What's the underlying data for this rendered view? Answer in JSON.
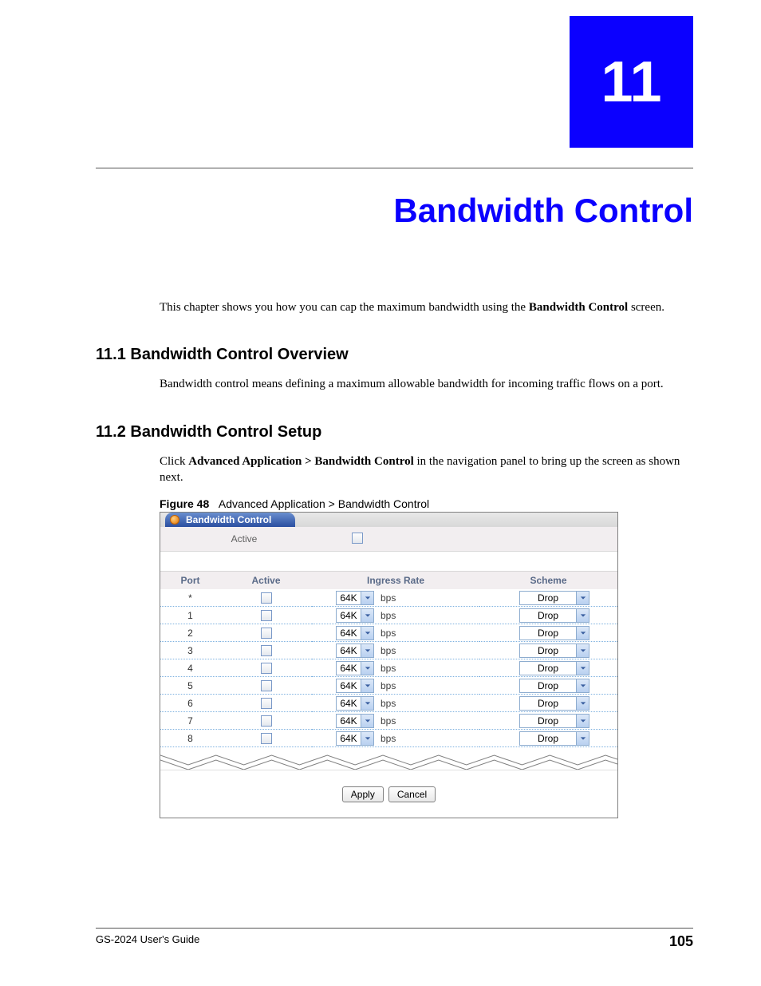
{
  "chapter": {
    "number": "11",
    "title": "Bandwidth Control"
  },
  "intro": {
    "prefix": "This chapter shows you how you can cap the maximum bandwidth using the ",
    "bold": "Bandwidth Control",
    "suffix": " screen."
  },
  "s1": {
    "heading": "11.1  Bandwidth Control Overview",
    "body": "Bandwidth control means defining a maximum allowable bandwidth for incoming traffic flows on a port."
  },
  "s2": {
    "heading": "11.2  Bandwidth Control Setup",
    "body_prefix": "Click ",
    "body_bold": "Advanced Application > Bandwidth Control",
    "body_suffix": " in the navigation panel to bring up the screen as shown next."
  },
  "figure": {
    "label": "Figure 48",
    "caption": "Advanced Application > Bandwidth Control"
  },
  "screenshot": {
    "tab_title": "Bandwidth Control",
    "active_label": "Active",
    "columns": {
      "port": "Port",
      "active": "Active",
      "rate": "Ingress Rate",
      "scheme": "Scheme"
    },
    "rate_unit": "bps",
    "rows": [
      {
        "port": "*",
        "rate": "64K",
        "scheme": "Drop"
      },
      {
        "port": "1",
        "rate": "64K",
        "scheme": "Drop"
      },
      {
        "port": "2",
        "rate": "64K",
        "scheme": "Drop"
      },
      {
        "port": "3",
        "rate": "64K",
        "scheme": "Drop"
      },
      {
        "port": "4",
        "rate": "64K",
        "scheme": "Drop"
      },
      {
        "port": "5",
        "rate": "64K",
        "scheme": "Drop"
      },
      {
        "port": "6",
        "rate": "64K",
        "scheme": "Drop"
      },
      {
        "port": "7",
        "rate": "64K",
        "scheme": "Drop"
      },
      {
        "port": "8",
        "rate": "64K",
        "scheme": "Drop"
      }
    ],
    "buttons": {
      "apply": "Apply",
      "cancel": "Cancel"
    }
  },
  "footer": {
    "guide": "GS-2024 User's Guide",
    "page": "105"
  },
  "colors": {
    "accent": "#0b00ff"
  }
}
